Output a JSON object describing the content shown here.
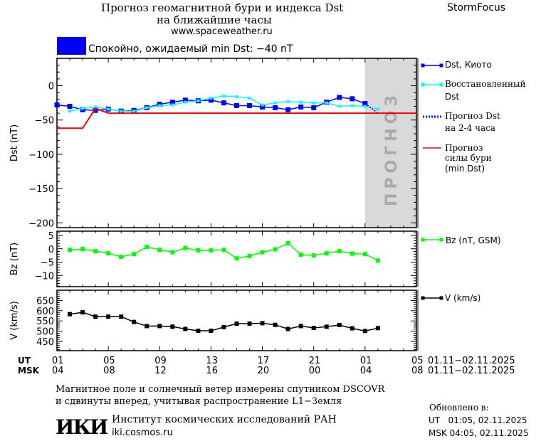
{
  "header": {
    "title_line1": "Прогноз геомагнитной бури и индекса Dst",
    "title_line2": "на ближайшие часы",
    "site": "www.spaceweather.ru",
    "brand": "StormFocus",
    "status_text": "Спокойно, ожидаемый min Dst: −40 nT",
    "status_color": "#0000ff"
  },
  "chart_data": [
    {
      "type": "line",
      "ylabel": "Dst (nT)",
      "ylim": [
        -207,
        40
      ],
      "yticks": [
        0,
        -50,
        -100,
        -150,
        -200
      ],
      "forecast_region": {
        "label": "ПРОГНОЗ",
        "from": "02.11 01:00",
        "to": "02.11 05:00",
        "color": "#d9d9d9"
      },
      "series": [
        {
          "name": "Dst, Киото",
          "color": "#0000ff",
          "marker": "square",
          "style": "solid",
          "x": [
            "01.11 01:00",
            "01.11 02:00",
            "01.11 03:00",
            "01.11 04:00",
            "01.11 05:00",
            "01.11 06:00",
            "01.11 07:00",
            "01.11 08:00",
            "01.11 09:00",
            "01.11 10:00",
            "01.11 11:00",
            "01.11 12:00",
            "01.11 13:00",
            "01.11 14:00",
            "01.11 15:00",
            "01.11 16:00",
            "01.11 17:00",
            "01.11 18:00",
            "01.11 19:00",
            "01.11 20:00",
            "01.11 21:00",
            "01.11 22:00",
            "01.11 23:00",
            "02.11 00:00",
            "02.11 01:00"
          ],
          "y": [
            -28,
            -30,
            -35,
            -36,
            -34,
            -37,
            -36,
            -32,
            -27,
            -24,
            -21,
            -22,
            -21,
            -25,
            -29,
            -29,
            -31,
            -32,
            -35,
            -31,
            -32,
            -24,
            -17,
            -19,
            -26
          ]
        },
        {
          "name": "Восстановленный Dst",
          "color": "#00ffff",
          "marker": "small-square",
          "style": "solid",
          "x": [
            "01.11 02:00",
            "01.11 03:00",
            "01.11 04:00",
            "01.11 05:00",
            "01.11 06:00",
            "01.11 07:00",
            "01.11 08:00",
            "01.11 09:00",
            "01.11 10:00",
            "01.11 11:00",
            "01.11 12:00",
            "01.11 13:00",
            "01.11 14:00",
            "01.11 15:00",
            "01.11 16:00",
            "01.11 17:00",
            "01.11 18:00",
            "01.11 19:00",
            "01.11 20:00",
            "01.11 21:00",
            "01.11 22:00",
            "01.11 23:00",
            "02.11 00:00",
            "02.11 01:00",
            "02.11 02:00"
          ],
          "y": [
            -37,
            -33,
            -31,
            -34,
            -37,
            -37,
            -32,
            -29,
            -28,
            -24,
            -22,
            -18,
            -15,
            -16,
            -18,
            -28,
            -25,
            -23,
            -24,
            -25,
            -25,
            -30,
            -29,
            -30,
            -34
          ]
        },
        {
          "name": "Прогноз Dst на 2-4 часа",
          "color": "#0000ff",
          "marker": "none",
          "style": "dotted",
          "x": [
            "02.11 01:00",
            "02.11 02:00",
            "02.11 04:00"
          ],
          "y": [
            -26,
            -40,
            -40
          ]
        },
        {
          "name": "Прогноз силы бури (min Dst)",
          "color": "#ff0000",
          "marker": "none",
          "style": "solid",
          "x": [
            "01.11 01:00",
            "01.11 03:00",
            "01.11 04:00",
            "01.11 05:00",
            "02.11 05:00"
          ],
          "y": [
            -62,
            -62,
            -33,
            -40,
            -40
          ]
        }
      ]
    },
    {
      "type": "line",
      "ylabel": "Bz (nT)",
      "ylim": [
        -14.2,
        6.6
      ],
      "yticks": [
        5,
        0,
        -5,
        -10
      ],
      "series": [
        {
          "name": "Bz (nT, GSM)",
          "color": "#00ff00",
          "marker": "square",
          "style": "solid",
          "x": [
            "01.11 02:00",
            "01.11 03:00",
            "01.11 04:00",
            "01.11 05:00",
            "01.11 06:00",
            "01.11 07:00",
            "01.11 08:00",
            "01.11 09:00",
            "01.11 10:00",
            "01.11 11:00",
            "01.11 12:00",
            "01.11 13:00",
            "01.11 14:00",
            "01.11 15:00",
            "01.11 16:00",
            "01.11 17:00",
            "01.11 18:00",
            "01.11 19:00",
            "01.11 20:00",
            "01.11 21:00",
            "01.11 22:00",
            "01.11 23:00",
            "02.11 00:00",
            "02.11 01:00",
            "02.11 02:00"
          ],
          "y": [
            -0.4,
            -0.1,
            -0.9,
            -1.7,
            -3.0,
            -2.0,
            0.7,
            -0.4,
            -1.3,
            0.3,
            -0.6,
            -0.6,
            -0.4,
            -3.6,
            -2.7,
            -1.3,
            -0.2,
            2.1,
            -2.2,
            -2.5,
            -1.7,
            -0.9,
            -1.8,
            -2.0,
            -4.4
          ]
        }
      ]
    },
    {
      "type": "line",
      "ylabel": "V (km/s)",
      "ylim": [
        405,
        700
      ],
      "yticks": [
        650,
        600,
        550,
        500,
        450
      ],
      "series": [
        {
          "name": "V (km/s)",
          "color": "#000000",
          "marker": "square",
          "style": "solid",
          "x": [
            "01.11 02:00",
            "01.11 03:00",
            "01.11 04:00",
            "01.11 05:00",
            "01.11 06:00",
            "01.11 07:00",
            "01.11 08:00",
            "01.11 09:00",
            "01.11 10:00",
            "01.11 11:00",
            "01.11 12:00",
            "01.11 13:00",
            "01.11 14:00",
            "01.11 15:00",
            "01.11 16:00",
            "01.11 17:00",
            "01.11 18:00",
            "01.11 19:00",
            "01.11 20:00",
            "01.11 21:00",
            "01.11 22:00",
            "01.11 23:00",
            "02.11 00:00",
            "02.11 01:00",
            "02.11 02:00"
          ],
          "y": [
            583,
            592,
            571,
            571,
            571,
            545,
            525,
            525,
            522,
            511,
            502,
            502,
            520,
            537,
            537,
            539,
            531,
            511,
            525,
            516,
            522,
            530,
            514,
            501,
            515
          ]
        }
      ]
    }
  ],
  "xaxis": {
    "range": [
      "01.11 01:00",
      "02.11 05:00"
    ],
    "ut_label": "UT",
    "msk_label": "MSK",
    "ut_ticks": [
      "01",
      "05",
      "09",
      "13",
      "17",
      "21",
      "01",
      "05"
    ],
    "msk_ticks": [
      "04",
      "08",
      "12",
      "16",
      "20",
      "00",
      "04",
      "08"
    ],
    "ut_dates": "01.11−02.11.2025",
    "msk_dates": "01.11−02.11.2025"
  },
  "legend": {
    "dst_kyoto": "Dst, Киото",
    "restored_1": "Восстановленный",
    "restored_2": "Dst",
    "forecast_1": "Прогноз Dst",
    "forecast_2": "на 2-4 часа",
    "storm_1": "Прогноз",
    "storm_2": "силы бури",
    "storm_3": "(min Dst)",
    "bz": "Bz (nT, GSM)",
    "v": "V (km/s)"
  },
  "footer": {
    "note_line1": "Магнитное поле и солнечный ветер измерены спутником DSCOVR",
    "note_line2": "и сдвинуты вперед, учитывая распространение L1−Земля",
    "logo": "ИКИ",
    "institute": "Институт космических исследований РАН",
    "institute_url": "iki.cosmos.ru",
    "updated_label": "Обновлено в:",
    "updated_ut": "UT   01:05, 02.11.2025",
    "updated_msk": "MSK 04:05, 02.11.2025"
  }
}
